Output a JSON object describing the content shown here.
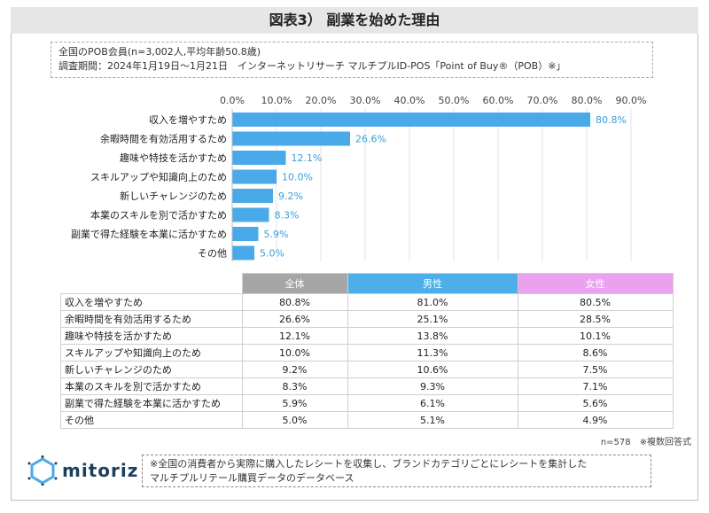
{
  "title": "図表3） 副業を始めた理由",
  "info": {
    "line1": "全国のPOB会員(n=3,002人,平均年齢50.8歳)",
    "line2": "調査期間：2024年1月19日～1月21日　インターネットリサーチ マルチプルID-POS「Point of Buy®（POB）※」"
  },
  "chart_data": {
    "type": "bar",
    "orientation": "horizontal",
    "categories": [
      "収入を増やすため",
      "余暇時間を有効活用するため",
      "趣味や特技を活かすため",
      "スキルアップや知識向上のため",
      "新しいチャレンジのため",
      "本業のスキルを別で活かすため",
      "副業で得た経験を本業に活かすため",
      "その他"
    ],
    "values": [
      80.8,
      26.6,
      12.1,
      10.0,
      9.2,
      8.3,
      5.9,
      5.0
    ],
    "value_labels": [
      "80.8%",
      "26.6%",
      "12.1%",
      "10.0%",
      "9.2%",
      "8.3%",
      "5.9%",
      "5.0%"
    ],
    "xlim": [
      0,
      90
    ],
    "ticks": [
      "0.0%",
      "10.0%",
      "20.0%",
      "30.0%",
      "40.0%",
      "50.0%",
      "60.0%",
      "70.0%",
      "80.0%",
      "90.0%"
    ],
    "axis_position": "top",
    "grid": true,
    "bar_color": "#4aa9e9",
    "label_color": "#3a9fd9"
  },
  "table": {
    "headers": [
      "全体",
      "男性",
      "女性"
    ],
    "header_colors": [
      "#a6a6a6",
      "#4eaeea",
      "#eaa2ef"
    ],
    "rows": [
      [
        "収入を増やすため",
        "80.8%",
        "81.0%",
        "80.5%"
      ],
      [
        "余暇時間を有効活用するため",
        "26.6%",
        "25.1%",
        "28.5%"
      ],
      [
        "趣味や特技を活かすため",
        "12.1%",
        "13.8%",
        "10.1%"
      ],
      [
        "スキルアップや知識向上のため",
        "10.0%",
        "11.3%",
        "8.6%"
      ],
      [
        "新しいチャレンジのため",
        "9.2%",
        "10.6%",
        "7.5%"
      ],
      [
        "本業のスキルを別で活かすため",
        "8.3%",
        "9.3%",
        "7.1%"
      ],
      [
        "副業で得た経験を本業に活かすため",
        "5.9%",
        "6.1%",
        "5.6%"
      ],
      [
        "その他",
        "5.0%",
        "5.1%",
        "4.9%"
      ]
    ]
  },
  "sample_note": "n=578　※複数回答式",
  "logo": "mitoriz",
  "footnote": {
    "line1": "※全国の消費者から実際に購入したレシートを収集し、ブランドカテゴリごとにレシートを集計した",
    "line2": "マルチプルリテール購買データのデータベース"
  }
}
